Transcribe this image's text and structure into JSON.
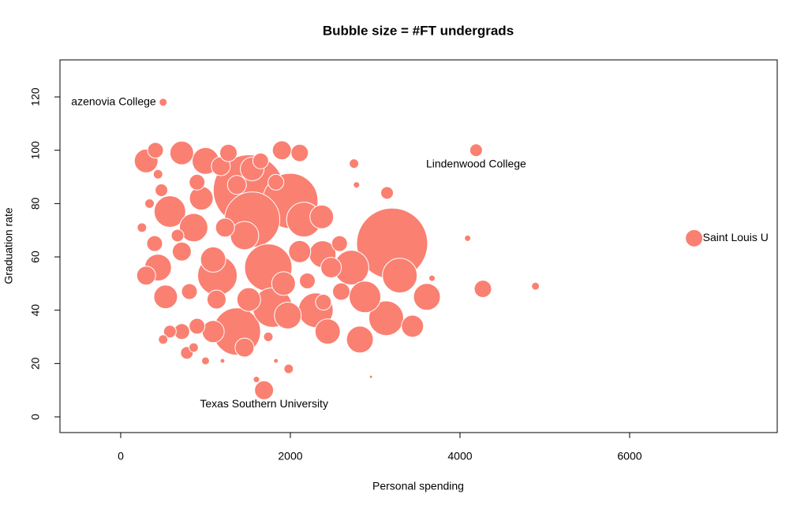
{
  "chart_data": {
    "type": "bubble",
    "title": "Bubble size = #FT undergrads",
    "xlabel": "Personal spending",
    "ylabel": "Graduation rate",
    "color": "#fa8072",
    "xlim": [
      -716,
      7740
    ],
    "ylim": [
      -5.9,
      133.9
    ],
    "xticks": [
      0,
      2000,
      4000,
      6000
    ],
    "yticks": [
      0,
      20,
      40,
      60,
      80,
      100,
      120
    ],
    "x": [
      500,
      4190,
      6760,
      1690,
      2750,
      2780,
      3140,
      4090,
      3670,
      4270,
      4890,
      2950,
      1980,
      3200,
      3290,
      3610,
      3440,
      3130,
      2820,
      2880,
      2720,
      2440,
      2600,
      2380,
      2160,
      2000,
      1510,
      1550,
      1740,
      1370,
      1140,
      720,
      300,
      1000,
      1900,
      2110,
      1550,
      1270,
      580,
      860,
      440,
      530,
      720,
      780,
      900,
      1090,
      1460,
      1970,
      2300,
      1790,
      950,
      720,
      1090,
      810,
      1230,
      2480,
      2390,
      2370,
      1460,
      2110,
      1920,
      860,
      1000,
      500,
      580,
      300,
      400,
      480,
      900,
      1180,
      1650,
      1370,
      1830,
      440,
      410,
      250,
      340,
      670,
      1130,
      1510,
      2580,
      2200,
      1600,
      1830,
      1200,
      1740
    ],
    "y": [
      118,
      100,
      67,
      10,
      95,
      87,
      84,
      67,
      52,
      48,
      49,
      15,
      18,
      65,
      53,
      45,
      34,
      37,
      29,
      45,
      56,
      32,
      47,
      61,
      74,
      81,
      85,
      74,
      56,
      32,
      53,
      99,
      96,
      96,
      100,
      99,
      93,
      99,
      77,
      71,
      56,
      45,
      32,
      24,
      34,
      32,
      26,
      38,
      40,
      41,
      82,
      62,
      59,
      47,
      71,
      56,
      43,
      75,
      68,
      62,
      50,
      26,
      21,
      29,
      32,
      53,
      65,
      85,
      88,
      94,
      96,
      87,
      88,
      91,
      100,
      71,
      80,
      68,
      44,
      44,
      65,
      51,
      14,
      21,
      21,
      30
    ],
    "sizes": [
      370,
      950,
      1790,
      2130,
      530,
      240,
      950,
      240,
      240,
      1790,
      370,
      60,
      530,
      29950,
      7160,
      4270,
      2900,
      7160,
      4270,
      5920,
      7160,
      3790,
      1790,
      4270,
      7160,
      18100,
      29950,
      18100,
      13300,
      13300,
      9250,
      3330,
      3330,
      4270,
      2130,
      1790,
      3330,
      1790,
      5920,
      4790,
      4270,
      3330,
      1480,
      950,
      1480,
      2900,
      2130,
      4270,
      7160,
      9250,
      3330,
      2130,
      3790,
      1480,
      2130,
      2500,
      1480,
      3330,
      4790,
      2900,
      3330,
      530,
      370,
      530,
      950,
      2130,
      1480,
      950,
      1480,
      2130,
      1480,
      2130,
      1480,
      530,
      1480,
      530,
      530,
      950,
      2130,
      3330,
      1480,
      1480,
      240,
      130,
      130,
      530
    ],
    "point_labels": [
      "azenovia College",
      "Lindenwood College",
      "Saint Louis U",
      "Texas Southern University",
      null,
      null,
      null,
      null,
      null,
      null,
      null,
      null,
      null,
      null,
      null,
      null,
      null,
      null,
      null,
      null,
      null,
      null,
      null,
      null,
      null,
      null,
      null,
      null,
      null,
      null,
      null,
      null,
      null,
      null,
      null,
      null,
      null,
      null,
      null,
      null,
      null,
      null,
      null,
      null,
      null,
      null,
      null,
      null,
      null,
      null,
      null,
      null,
      null,
      null,
      null,
      null,
      null,
      null,
      null,
      null,
      null,
      null,
      null,
      null,
      null,
      null,
      null,
      null,
      null,
      null,
      null,
      null,
      null,
      null,
      null,
      null,
      null,
      null,
      null,
      null,
      null,
      null,
      null,
      null,
      null,
      null
    ]
  }
}
